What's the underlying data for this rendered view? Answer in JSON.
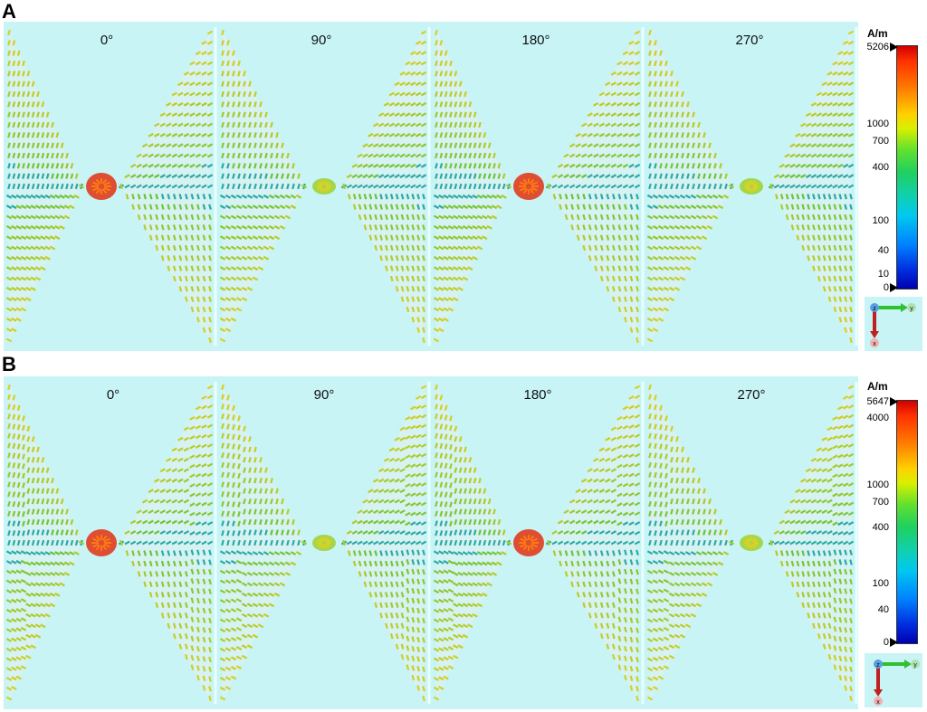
{
  "panels": [
    {
      "letter": "A",
      "angles": [
        "0°",
        "90°",
        "180°",
        "270°"
      ],
      "unit": "A/m",
      "max_label": "5206",
      "ticks": [
        "1000",
        "700",
        "400",
        "100",
        "40",
        "10",
        "0"
      ],
      "axes": {
        "z": "z",
        "y": "y",
        "x": "x"
      }
    },
    {
      "letter": "B",
      "angles": [
        "0°",
        "90°",
        "180°",
        "270°"
      ],
      "unit": "A/m",
      "max_label": "5647",
      "ticks": [
        "4000",
        "1000",
        "700",
        "400",
        "100",
        "40",
        "0"
      ],
      "axes": {
        "z": "z",
        "y": "y",
        "x": "x"
      }
    }
  ],
  "colors": {
    "background": "#c8f4f6",
    "field_low": "#20a0d0",
    "field_mid": "#40c040",
    "field_high": "#e03010"
  }
}
